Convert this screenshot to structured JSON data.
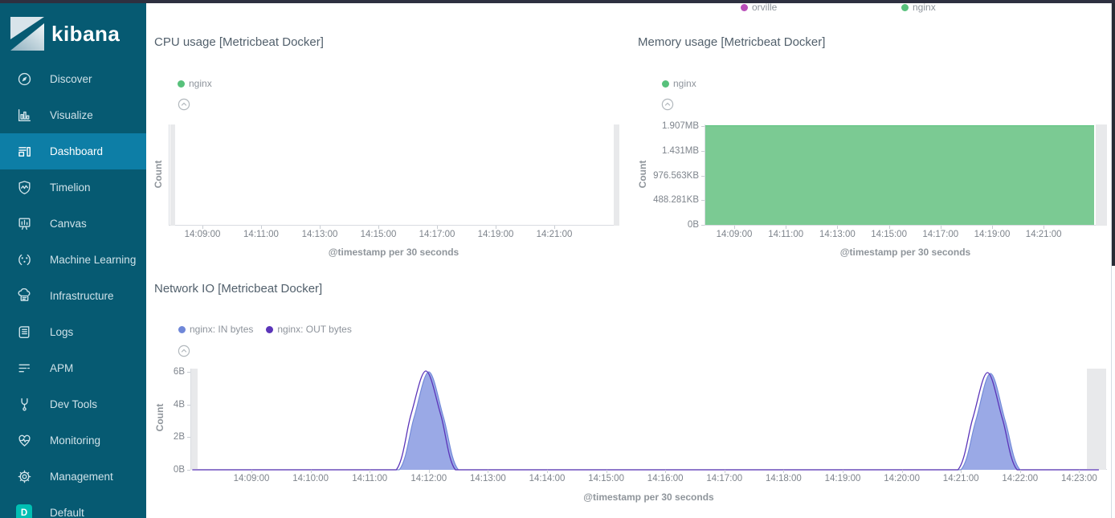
{
  "sidebar": {
    "logo": {
      "text": "kibana",
      "icon": "kibana-logo"
    },
    "items": [
      {
        "label": "Discover",
        "icon": "compass-icon",
        "selected": false
      },
      {
        "label": "Visualize",
        "icon": "bar-chart-icon",
        "selected": false
      },
      {
        "label": "Dashboard",
        "icon": "dashboard-grid-icon",
        "selected": true
      },
      {
        "label": "Timelion",
        "icon": "timelion-shield-icon",
        "selected": false
      },
      {
        "label": "Canvas",
        "icon": "canvas-easel-icon",
        "selected": false
      },
      {
        "label": "Machine Learning",
        "icon": "machine-learning-icon",
        "selected": false
      },
      {
        "label": "Infrastructure",
        "icon": "infrastructure-cloud-icon",
        "selected": false
      },
      {
        "label": "Logs",
        "icon": "logs-scroll-icon",
        "selected": false
      },
      {
        "label": "APM",
        "icon": "apm-lines-icon",
        "selected": false
      },
      {
        "label": "Dev Tools",
        "icon": "wrench-icon",
        "selected": false
      },
      {
        "label": "Monitoring",
        "icon": "heartbeat-icon",
        "selected": false
      },
      {
        "label": "Management",
        "icon": "gear-icon",
        "selected": false
      },
      {
        "label": "Default",
        "icon": "space-badge",
        "badge": "D",
        "selected": false
      }
    ],
    "colors": {
      "background": "#065a72",
      "selected_background": "#0d7ea6",
      "badge_background": "#00bfb3"
    }
  },
  "top_legend": {
    "items": [
      {
        "label": "orville",
        "color": "#b94db9"
      },
      {
        "label": "nginx",
        "color": "#57c17b"
      }
    ]
  },
  "chart_data": [
    {
      "id": "cpu",
      "type": "area",
      "title": "CPU usage [Metricbeat Docker]",
      "ylabel": "Count",
      "xlabel": "@timestamp per 30 seconds",
      "legend": [
        {
          "label": "nginx",
          "color": "#57c17b"
        }
      ],
      "x_ticks": [
        "14:09:00",
        "14:11:00",
        "14:13:00",
        "14:15:00",
        "14:17:00",
        "14:19:00",
        "14:21:00"
      ],
      "y_ticks": [],
      "series": [
        {
          "name": "nginx",
          "color": "#57c17b",
          "points": []
        }
      ],
      "empty": true
    },
    {
      "id": "memory",
      "type": "area",
      "title": "Memory usage [Metricbeat Docker]",
      "ylabel": "Count",
      "xlabel": "@timestamp per 30 seconds",
      "legend": [
        {
          "label": "nginx",
          "color": "#57c17b"
        }
      ],
      "x_ticks": [
        "14:09:00",
        "14:11:00",
        "14:13:00",
        "14:15:00",
        "14:17:00",
        "14:19:00",
        "14:21:00"
      ],
      "y_ticks": [
        "1.907MB",
        "1.431MB",
        "976.563KB",
        "488.281KB",
        "0B"
      ],
      "ylim": {
        "min": "0B",
        "max": "1.907MB"
      },
      "series": [
        {
          "name": "nginx",
          "color": "#57c17b",
          "fill": "#7bca93",
          "shape": "constant",
          "value": "1.907MB",
          "extent": "entire visible range 14:08-14:23"
        }
      ]
    },
    {
      "id": "network",
      "type": "area",
      "title": "Network IO [Metricbeat Docker]",
      "ylabel": "Count",
      "xlabel": "@timestamp per 30 seconds",
      "legend": [
        {
          "label": "nginx: IN bytes",
          "color": "#6f87d8"
        },
        {
          "label": "nginx: OUT bytes",
          "color": "#5b35b9"
        }
      ],
      "x_ticks": [
        "14:09:00",
        "14:10:00",
        "14:11:00",
        "14:12:00",
        "14:13:00",
        "14:14:00",
        "14:15:00",
        "14:16:00",
        "14:17:00",
        "14:18:00",
        "14:19:00",
        "14:20:00",
        "14:21:00",
        "14:22:00",
        "14:23:00"
      ],
      "y_ticks": [
        "6B",
        "4B",
        "2B",
        "0B"
      ],
      "ylim": {
        "min": "0B",
        "max": "6B"
      },
      "series": [
        {
          "name": "nginx: IN bytes",
          "color": "#6f87d8",
          "fill": "#9aa9e6",
          "points": [
            [
              "14:08:00",
              0
            ],
            [
              "14:11:00",
              0
            ],
            [
              "14:11:30",
              0
            ],
            [
              "14:11:45",
              3.2
            ],
            [
              "14:12:00",
              6
            ],
            [
              "14:12:15",
              3.2
            ],
            [
              "14:12:30",
              0
            ],
            [
              "14:13:00",
              0
            ],
            [
              "14:20:30",
              0
            ],
            [
              "14:21:00",
              0
            ],
            [
              "14:21:15",
              3.0
            ],
            [
              "14:21:30",
              5.9
            ],
            [
              "14:21:45",
              3.0
            ],
            [
              "14:22:00",
              0
            ],
            [
              "14:22:30",
              0
            ],
            [
              "14:23:20",
              0
            ]
          ]
        },
        {
          "name": "nginx: OUT bytes",
          "color": "#5b35b9",
          "points": [
            [
              "14:08:00",
              0
            ],
            [
              "14:10:57",
              0
            ],
            [
              "14:11:27",
              0
            ],
            [
              "14:11:42",
              3.4
            ],
            [
              "14:11:57",
              6.05
            ],
            [
              "14:12:12",
              3.4
            ],
            [
              "14:12:27",
              0
            ],
            [
              "14:12:57",
              0
            ],
            [
              "14:20:27",
              0
            ],
            [
              "14:20:57",
              0
            ],
            [
              "14:21:12",
              3.15
            ],
            [
              "14:21:27",
              5.95
            ],
            [
              "14:21:42",
              3.15
            ],
            [
              "14:21:57",
              0
            ],
            [
              "14:22:27",
              0
            ],
            [
              "14:23:20",
              0
            ]
          ]
        }
      ]
    }
  ]
}
